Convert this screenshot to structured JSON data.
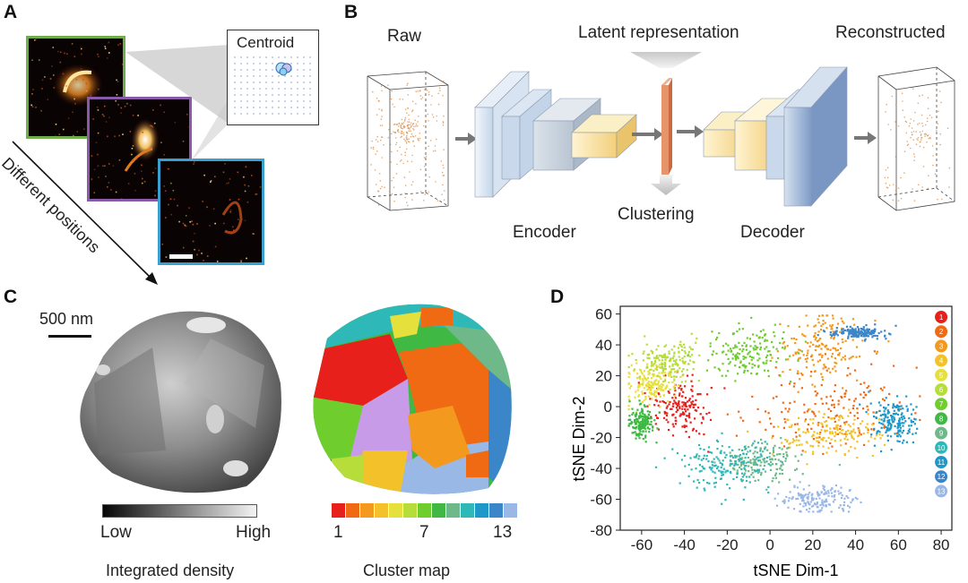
{
  "panels": {
    "a": {
      "letter": "A",
      "centroid_label": "Centroid",
      "diagonal_label": "Different positions",
      "frame_colors": [
        "#6fae4b",
        "#8a5aa8",
        "#3aa0cf"
      ]
    },
    "b": {
      "letter": "B",
      "raw_label": "Raw",
      "latent_label": "Latent representation",
      "reconstructed_label": "Reconstructed",
      "encoder_label": "Encoder",
      "clustering_label": "Clustering",
      "decoder_label": "Decoder"
    },
    "c": {
      "letter": "C",
      "scale_label": "500 nm",
      "density_low": "Low",
      "density_high": "High",
      "density_title": "Integrated density",
      "cluster_tick_min": "1",
      "cluster_tick_mid": "7",
      "cluster_tick_max": "13",
      "cluster_title": "Cluster map"
    },
    "d": {
      "letter": "D"
    }
  },
  "cluster_colors": [
    "#e8201c",
    "#f06a14",
    "#f39a1e",
    "#f3c22a",
    "#e6e03c",
    "#b7dd3a",
    "#6fcd2e",
    "#3fb844",
    "#6fb88a",
    "#2fb8b8",
    "#1e98c8",
    "#3a86c8",
    "#9ab8e6"
  ],
  "chart_data": {
    "type": "scatter",
    "xlabel": "tSNE Dim-1",
    "ylabel": "tSNE Dim-2",
    "xlim": [
      -70,
      85
    ],
    "ylim": [
      -80,
      65
    ],
    "xticks": [
      -60,
      -40,
      -20,
      0,
      20,
      40,
      60,
      80
    ],
    "yticks": [
      60,
      40,
      20,
      0,
      -20,
      -40,
      -60,
      -80
    ],
    "legend": [
      "1",
      "2",
      "3",
      "4",
      "5",
      "6",
      "7",
      "8",
      "9",
      "10",
      "11",
      "12",
      "13"
    ],
    "legend_position": "right",
    "series": [
      {
        "name": "1",
        "cx": -42,
        "cy": 0,
        "sx": 7,
        "sy": 9
      },
      {
        "name": "2",
        "cx": 28,
        "cy": 0,
        "sx": 20,
        "sy": 14
      },
      {
        "name": "3",
        "cx": 25,
        "cy": 38,
        "sx": 10,
        "sy": 13
      },
      {
        "name": "4",
        "cx": 28,
        "cy": -18,
        "sx": 12,
        "sy": 7
      },
      {
        "name": "5",
        "cx": -55,
        "cy": 15,
        "sx": 6,
        "sy": 6
      },
      {
        "name": "6",
        "cx": -48,
        "cy": 30,
        "sx": 7,
        "sy": 6
      },
      {
        "name": "7",
        "cx": -10,
        "cy": 35,
        "sx": 10,
        "sy": 8
      },
      {
        "name": "8",
        "cx": -60,
        "cy": -10,
        "sx": 3,
        "sy": 5
      },
      {
        "name": "9",
        "cx": -5,
        "cy": -35,
        "sx": 8,
        "sy": 7
      },
      {
        "name": "10",
        "cx": -20,
        "cy": -38,
        "sx": 11,
        "sy": 8
      },
      {
        "name": "11",
        "cx": 58,
        "cy": -10,
        "sx": 5,
        "sy": 8
      },
      {
        "name": "12",
        "cx": 42,
        "cy": 48,
        "sx": 6,
        "sy": 2
      },
      {
        "name": "13",
        "cx": 22,
        "cy": -60,
        "sx": 8,
        "sy": 5
      }
    ]
  }
}
